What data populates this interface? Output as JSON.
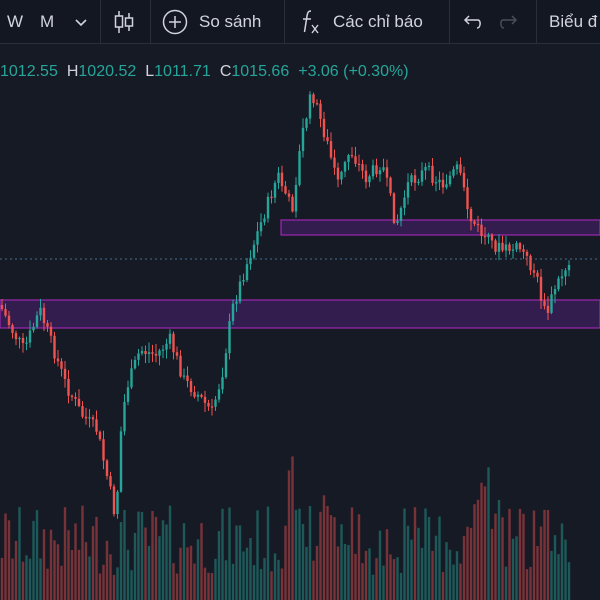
{
  "toolbar": {
    "interval_w": "W",
    "interval_m": "M",
    "compare_label": "So sánh",
    "indicators_label": "Các chỉ báo",
    "chart_type_label": "Biểu đ",
    "icons": {
      "dropdown": "chevron-down-icon",
      "candles": "candlestick-icon",
      "compare": "plus-circle-icon",
      "indicators": "function-icon",
      "undo": "undo-icon",
      "redo": "redo-icon"
    }
  },
  "legend": {
    "open_value": "1012.55",
    "high_label": "H",
    "high_value": "1020.52",
    "low_label": "L",
    "low_value": "1011.71",
    "close_label": "C",
    "close_value": "1015.66",
    "change": "+3.06 (+0.30%)"
  },
  "colors": {
    "background": "#161a25",
    "toolbar": "#131722",
    "up": "#26a69a",
    "down": "#ef5350",
    "zone_fill": "#3d1f5c",
    "zone_border": "#9c27b0"
  },
  "chart_data": {
    "type": "candlestick",
    "zones": [
      {
        "name": "upper-resistance-zone",
        "from": "mid-range",
        "to": "right-edge"
      },
      {
        "name": "lower-support-zone",
        "from": "left-edge",
        "to": "right-edge"
      }
    ],
    "has_volume": true,
    "last_price_line": "dotted"
  }
}
